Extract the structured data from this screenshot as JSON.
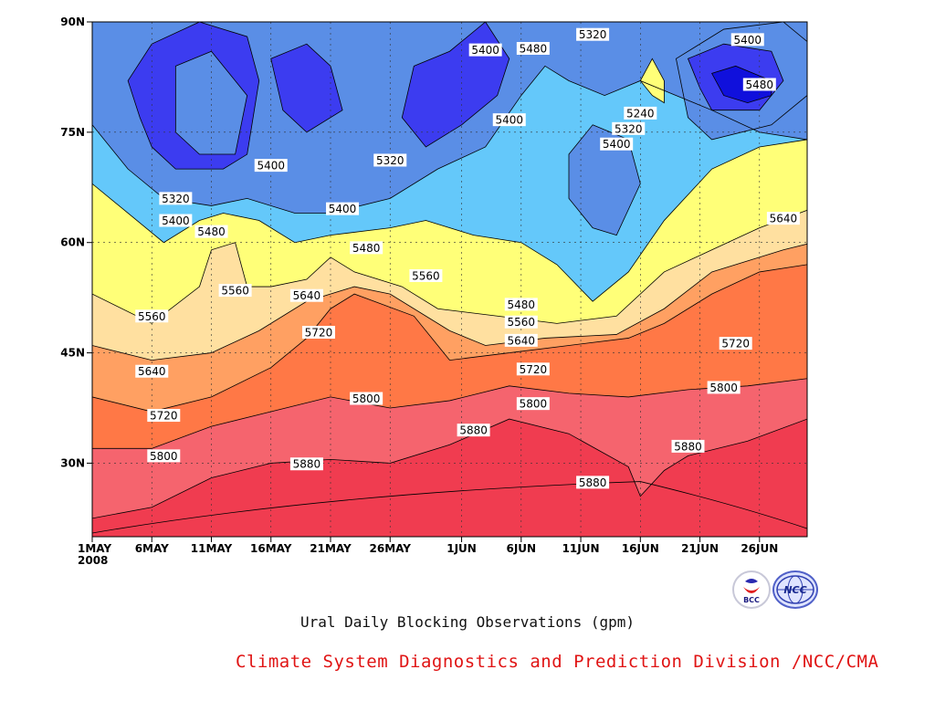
{
  "caption": "Ural Daily Blocking Observations (gpm)",
  "credit": "Climate System Diagnostics and Prediction Division /NCC/CMA",
  "logos": [
    {
      "name": "bcc-logo-icon",
      "text": "BCC"
    },
    {
      "name": "ncc-logo-icon",
      "text": "NCC"
    }
  ],
  "chart_data": {
    "type": "heatmap",
    "subtype": "filled-contour",
    "xlabel": "",
    "ylabel": "",
    "x_ticks": [
      "1MAY",
      "6MAY",
      "11MAY",
      "16MAY",
      "21MAY",
      "26MAY",
      "1JUN",
      "6JUN",
      "11JUN",
      "16JUN",
      "21JUN",
      "26JUN"
    ],
    "x_tick_year": "2008",
    "x_range": [
      "2008-05-01",
      "2008-06-30"
    ],
    "y_ticks": [
      "30N",
      "45N",
      "60N",
      "75N",
      "90N"
    ],
    "y_range": [
      20,
      90
    ],
    "units": "gpm",
    "grid": true,
    "levels": [
      5240,
      5320,
      5400,
      5480,
      5560,
      5640,
      5720,
      5800,
      5880
    ],
    "fill_colors": {
      "below_5240": "#1010dc",
      "5240_5320": "#3c3cf0",
      "5320_5400": "#5a8ee6",
      "5400_5480": "#64c8fa",
      "5480_5560": "#ffff78",
      "5560_5640": "#ffe0a0",
      "5640_5720": "#ffa062",
      "5720_5800": "#ff7846",
      "5800_5880": "#f5646e",
      "above_5880": "#f03c50"
    },
    "contour_labels": [
      {
        "value": 5800,
        "date": "2008-05-07",
        "lat": 31.0
      },
      {
        "value": 5720,
        "date": "2008-05-07",
        "lat": 36.5
      },
      {
        "value": 5640,
        "date": "2008-05-06",
        "lat": 42.5
      },
      {
        "value": 5560,
        "date": "2008-05-06",
        "lat": 50.0
      },
      {
        "value": 5560,
        "date": "2008-05-13",
        "lat": 53.5
      },
      {
        "value": 5480,
        "date": "2008-05-11",
        "lat": 61.5
      },
      {
        "value": 5400,
        "date": "2008-05-08",
        "lat": 63.0
      },
      {
        "value": 5320,
        "date": "2008-05-08",
        "lat": 66.0
      },
      {
        "value": 5400,
        "date": "2008-05-16",
        "lat": 70.5
      },
      {
        "value": 5880,
        "date": "2008-05-19",
        "lat": 29.9
      },
      {
        "value": 5800,
        "date": "2008-05-24",
        "lat": 38.8
      },
      {
        "value": 5720,
        "date": "2008-05-20",
        "lat": 47.8
      },
      {
        "value": 5640,
        "date": "2008-05-19",
        "lat": 52.8
      },
      {
        "value": 5480,
        "date": "2008-05-24",
        "lat": 59.3
      },
      {
        "value": 5560,
        "date": "2008-05-29",
        "lat": 55.5
      },
      {
        "value": 5400,
        "date": "2008-05-22",
        "lat": 64.6
      },
      {
        "value": 5320,
        "date": "2008-05-26",
        "lat": 71.2
      },
      {
        "value": 5880,
        "date": "2008-06-02",
        "lat": 34.5
      },
      {
        "value": 5400,
        "date": "2008-06-03",
        "lat": 86.2
      },
      {
        "value": 5400,
        "date": "2008-06-05",
        "lat": 76.7
      },
      {
        "value": 5480,
        "date": "2008-06-07",
        "lat": 86.4
      },
      {
        "value": 5480,
        "date": "2008-06-06",
        "lat": 51.6
      },
      {
        "value": 5560,
        "date": "2008-06-06",
        "lat": 49.2
      },
      {
        "value": 5640,
        "date": "2008-06-06",
        "lat": 46.7
      },
      {
        "value": 5720,
        "date": "2008-06-07",
        "lat": 42.8
      },
      {
        "value": 5800,
        "date": "2008-06-07",
        "lat": 38.1
      },
      {
        "value": 5320,
        "date": "2008-06-12",
        "lat": 88.3
      },
      {
        "value": 5240,
        "date": "2008-06-16",
        "lat": 77.6
      },
      {
        "value": 5320,
        "date": "2008-06-15",
        "lat": 75.5
      },
      {
        "value": 5400,
        "date": "2008-06-14",
        "lat": 73.4
      },
      {
        "value": 5880,
        "date": "2008-06-12",
        "lat": 27.4
      },
      {
        "value": 5400,
        "date": "2008-06-25",
        "lat": 87.6
      },
      {
        "value": 5480,
        "date": "2008-06-26",
        "lat": 81.5
      },
      {
        "value": 5640,
        "date": "2008-06-28",
        "lat": 63.3
      },
      {
        "value": 5720,
        "date": "2008-06-24",
        "lat": 46.3
      },
      {
        "value": 5800,
        "date": "2008-06-23",
        "lat": 40.3
      },
      {
        "value": 5880,
        "date": "2008-06-20",
        "lat": 32.3
      }
    ]
  }
}
